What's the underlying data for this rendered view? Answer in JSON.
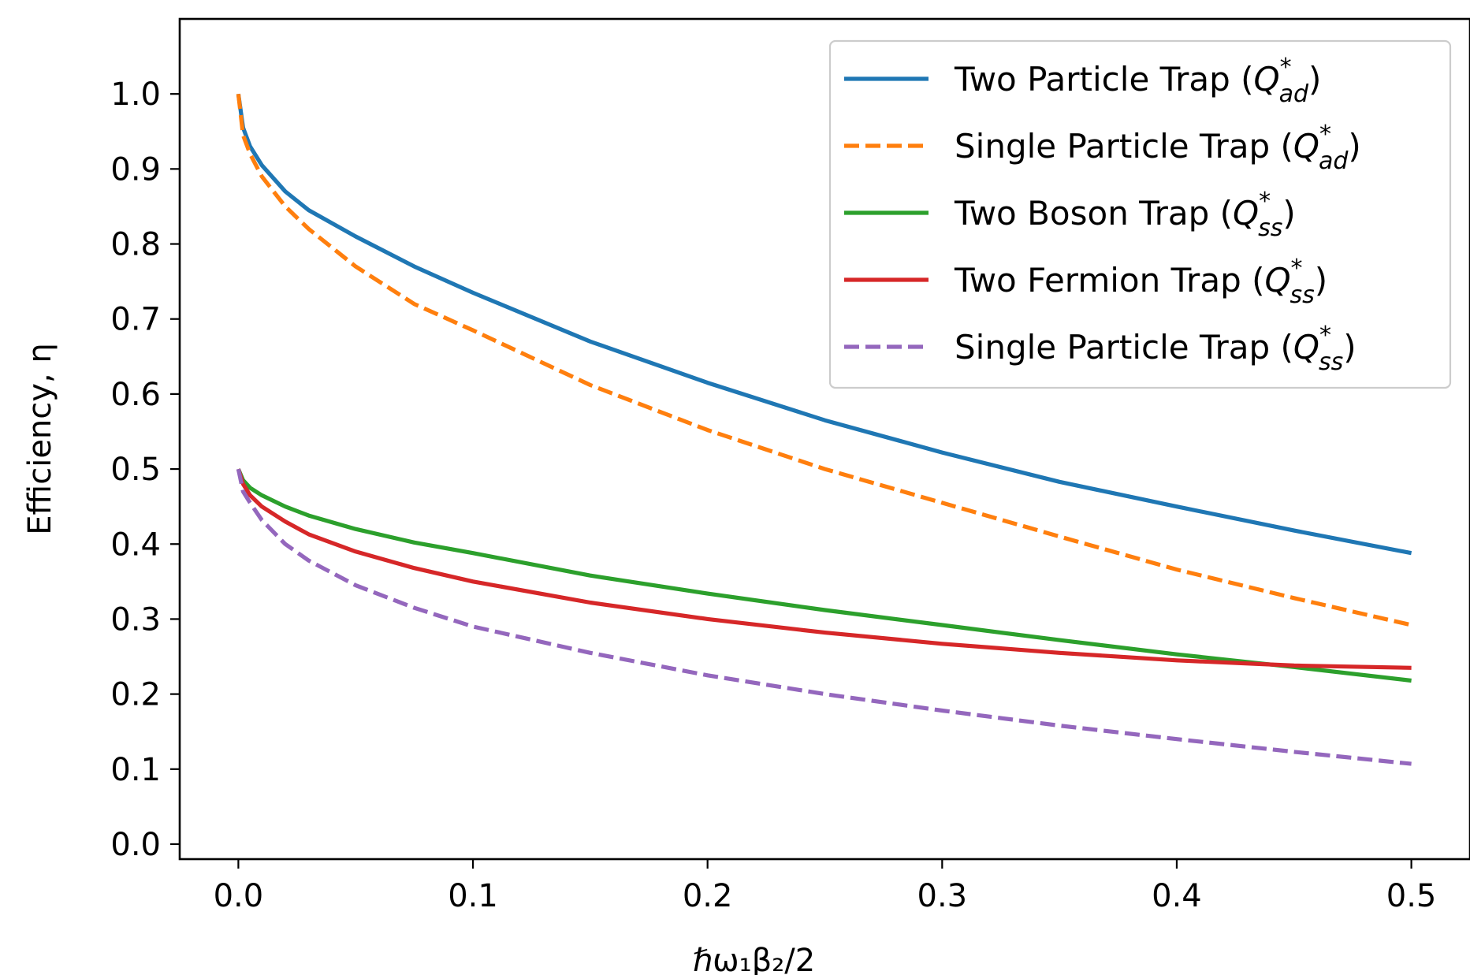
{
  "chart_data": {
    "type": "line",
    "title": "",
    "xlabel": "ℏω₁β₂/2",
    "ylabel": "Efficiency, η",
    "xlim": [
      -0.025,
      0.525
    ],
    "ylim": [
      -0.02,
      1.1
    ],
    "xticks": [
      0.0,
      0.1,
      0.2,
      0.3,
      0.4,
      0.5
    ],
    "xtick_labels": [
      "0.0",
      "0.1",
      "0.2",
      "0.3",
      "0.4",
      "0.5"
    ],
    "yticks": [
      0.0,
      0.1,
      0.2,
      0.3,
      0.4,
      0.5,
      0.6,
      0.7,
      0.8,
      0.9,
      1.0
    ],
    "ytick_labels": [
      "0.0",
      "0.1",
      "0.2",
      "0.3",
      "0.4",
      "0.5",
      "0.6",
      "0.7",
      "0.8",
      "0.9",
      "1.0"
    ],
    "grid": false,
    "legend": {
      "position": "top-right"
    },
    "series": [
      {
        "name": "Two Particle Trap (Q*ad)",
        "label_main": "Two Particle Trap (",
        "label_sym": "Q",
        "label_sup": "*",
        "label_sub": "ad",
        "label_end": ")",
        "color": "#1f77b4",
        "dash": "solid",
        "x": [
          0.0,
          0.002,
          0.005,
          0.01,
          0.02,
          0.03,
          0.05,
          0.075,
          0.1,
          0.15,
          0.2,
          0.25,
          0.3,
          0.35,
          0.4,
          0.45,
          0.5
        ],
        "y": [
          1.0,
          0.955,
          0.93,
          0.905,
          0.87,
          0.845,
          0.81,
          0.77,
          0.735,
          0.67,
          0.615,
          0.565,
          0.522,
          0.483,
          0.45,
          0.418,
          0.388
        ]
      },
      {
        "name": "Single Particle Trap (Q*ad)",
        "label_main": "Single Particle Trap (",
        "label_sym": "Q",
        "label_sup": "*",
        "label_sub": "ad",
        "label_end": ")",
        "color": "#ff7f0e",
        "dash": "dashed",
        "x": [
          0.0,
          0.002,
          0.005,
          0.01,
          0.02,
          0.03,
          0.05,
          0.075,
          0.1,
          0.15,
          0.2,
          0.25,
          0.3,
          0.35,
          0.4,
          0.45,
          0.5
        ],
        "y": [
          1.0,
          0.945,
          0.92,
          0.89,
          0.85,
          0.82,
          0.77,
          0.72,
          0.685,
          0.612,
          0.552,
          0.5,
          0.455,
          0.41,
          0.366,
          0.328,
          0.292
        ]
      },
      {
        "name": "Two Boson Trap (Q*ss)",
        "label_main": "Two Boson Trap (",
        "label_sym": "Q",
        "label_sup": "*",
        "label_sub": "ss",
        "label_end": ")",
        "color": "#2ca02c",
        "dash": "solid",
        "x": [
          0.0,
          0.002,
          0.005,
          0.01,
          0.02,
          0.03,
          0.05,
          0.075,
          0.1,
          0.15,
          0.2,
          0.25,
          0.3,
          0.35,
          0.4,
          0.45,
          0.5
        ],
        "y": [
          0.5,
          0.485,
          0.475,
          0.465,
          0.45,
          0.438,
          0.42,
          0.402,
          0.388,
          0.358,
          0.334,
          0.312,
          0.292,
          0.272,
          0.253,
          0.236,
          0.218
        ]
      },
      {
        "name": "Two Fermion Trap (Q*ss)",
        "label_main": "Two Fermion Trap (",
        "label_sym": "Q",
        "label_sup": "*",
        "label_sub": "ss",
        "label_end": ")",
        "color": "#d62728",
        "dash": "solid",
        "x": [
          0.0,
          0.002,
          0.005,
          0.01,
          0.02,
          0.03,
          0.05,
          0.075,
          0.1,
          0.15,
          0.2,
          0.25,
          0.3,
          0.35,
          0.4,
          0.45,
          0.5
        ],
        "y": [
          0.5,
          0.48,
          0.465,
          0.45,
          0.43,
          0.413,
          0.39,
          0.368,
          0.35,
          0.322,
          0.3,
          0.282,
          0.267,
          0.255,
          0.245,
          0.238,
          0.235
        ]
      },
      {
        "name": "Single Particle Trap (Q*ss)",
        "label_main": "Single Particle Trap (",
        "label_sym": "Q",
        "label_sup": "*",
        "label_sub": "ss",
        "label_end": ")",
        "color": "#9467bd",
        "dash": "dashed",
        "x": [
          0.0,
          0.002,
          0.005,
          0.01,
          0.02,
          0.03,
          0.05,
          0.075,
          0.1,
          0.15,
          0.2,
          0.25,
          0.3,
          0.35,
          0.4,
          0.45,
          0.5
        ],
        "y": [
          0.5,
          0.47,
          0.455,
          0.432,
          0.4,
          0.378,
          0.345,
          0.315,
          0.29,
          0.255,
          0.225,
          0.2,
          0.178,
          0.158,
          0.14,
          0.123,
          0.107
        ]
      }
    ]
  }
}
